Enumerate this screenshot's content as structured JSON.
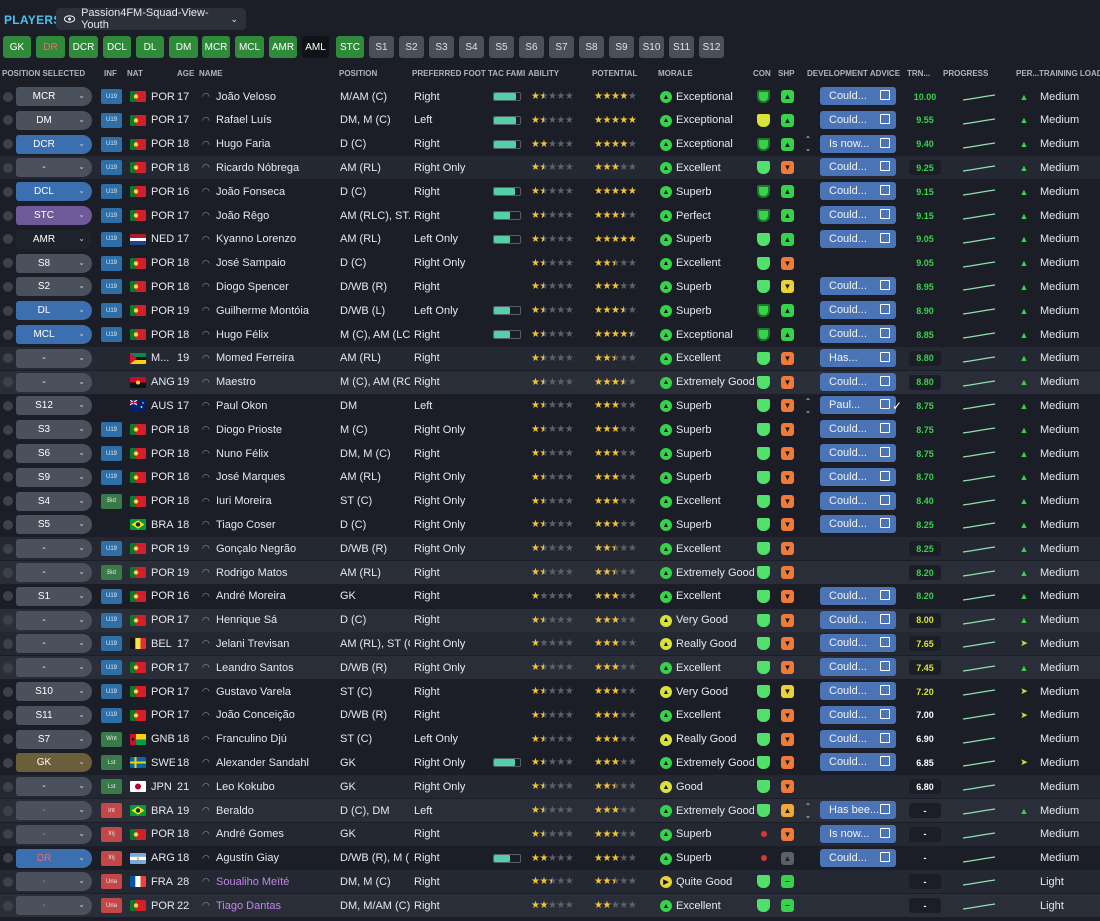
{
  "header": {
    "title": "PLAYERS",
    "view": "Passion4FM-Squad-View-Youth"
  },
  "position_buttons": [
    "GK",
    "DR",
    "DCR",
    "DCL",
    "DL",
    "DM",
    "MCR",
    "MCL",
    "AMR",
    "AML",
    "STC",
    "S1",
    "S2",
    "S3",
    "S4",
    "S5",
    "S6",
    "S7",
    "S8",
    "S9",
    "S10",
    "S11",
    "S12"
  ],
  "columns": {
    "position_selected": "POSITION SELECTED",
    "inf": "INF",
    "nat": "NAT",
    "age": "AGE",
    "name": "NAME",
    "position": "POSITION",
    "preferred_foot": "PREFERRED FOOT",
    "tac_fami": "TAC FAMI",
    "ability": "ABILITY",
    "potential": "POTENTIAL",
    "morale": "MORALE",
    "con": "CON",
    "shp": "SHP",
    "development_advice": "DEVELOPMENT ADVICE",
    "trn": "TRN...",
    "progress": "PROGRESS",
    "per": "PER...",
    "training_load": "TRAINING LOAD"
  },
  "colors": {
    "accent": "#49c2ee",
    "position_green": "#2f8a3a",
    "advice_blue": "#4a74b5",
    "star": "#f0c33a",
    "trn_green": "#37d24a",
    "trn_yellow": "#d8e23a",
    "trn_white": "#ffffff"
  },
  "players": [
    {
      "pos": "MCR",
      "inf": "U19",
      "flag": "POR",
      "nat": "POR",
      "age": "17",
      "name": "João Veloso",
      "position": "M/AM (C)",
      "foot": "Right",
      "fam": 0.85,
      "ability": 1.5,
      "potential": 4,
      "morale": "Exceptional",
      "morale_icon": "up",
      "con": "green-dark",
      "shp": "up-green",
      "arrows": false,
      "advice": "Could...",
      "tick": false,
      "trn": "10.00",
      "trn_color": "green",
      "per": "up",
      "load": "Medium"
    },
    {
      "pos": "DM",
      "inf": "U19",
      "flag": "POR",
      "nat": "POR",
      "age": "17",
      "name": "Rafael Luís",
      "position": "DM, M (C)",
      "foot": "Left",
      "fam": 0.85,
      "ability": 1.5,
      "potential": 5,
      "morale": "Exceptional",
      "morale_icon": "up",
      "con": "yellow",
      "shp": "up-green",
      "arrows": false,
      "advice": "Could...",
      "tick": false,
      "trn": "9.55",
      "trn_color": "green",
      "per": "up",
      "load": "Medium"
    },
    {
      "pos": "DCR",
      "inf": "U19",
      "flag": "POR",
      "nat": "POR",
      "age": "18",
      "name": "Hugo Faria",
      "position": "D (C)",
      "foot": "Right",
      "fam": 0.85,
      "ability": 2,
      "potential": 4,
      "morale": "Exceptional",
      "morale_icon": "up",
      "con": "green-dark",
      "shp": "up-green",
      "arrows": true,
      "advice": "Is now...",
      "tick": false,
      "trn": "9.40",
      "trn_color": "green",
      "per": "up",
      "load": "Medium"
    },
    {
      "pos": "-",
      "inf": "U19",
      "flag": "POR",
      "nat": "POR",
      "age": "18",
      "name": "Ricardo Nóbrega",
      "position": "AM (RL)",
      "foot": "Right Only",
      "fam": 0,
      "ability": 1.5,
      "potential": 3,
      "morale": "Excellent",
      "morale_icon": "up",
      "con": "green",
      "shp": "down-orange",
      "arrows": false,
      "advice": "Could...",
      "tick": false,
      "trn": "9.25",
      "trn_color": "green",
      "per": "up",
      "load": "Medium"
    },
    {
      "pos": "DCL",
      "inf": "U19",
      "flag": "POR",
      "nat": "POR",
      "age": "16",
      "name": "João Fonseca",
      "position": "D (C)",
      "foot": "Right",
      "fam": 0.8,
      "ability": 1.5,
      "potential": 5,
      "morale": "Superb",
      "morale_icon": "up",
      "con": "green-dark",
      "shp": "up-green",
      "arrows": false,
      "advice": "Could...",
      "tick": false,
      "trn": "9.15",
      "trn_color": "green",
      "per": "up",
      "load": "Medium"
    },
    {
      "pos": "STC",
      "inf": "U19",
      "flag": "POR",
      "nat": "POR",
      "age": "17",
      "name": "João Rêgo",
      "position": "AM (RLC), ST...",
      "foot": "Right",
      "fam": 0.6,
      "ability": 1.5,
      "potential": 3.5,
      "morale": "Perfect",
      "morale_icon": "up",
      "con": "green-dark",
      "shp": "up-green",
      "arrows": false,
      "advice": "Could...",
      "tick": false,
      "trn": "9.15",
      "trn_color": "green",
      "per": "up",
      "load": "Medium"
    },
    {
      "pos": "AMR",
      "inf": "U19",
      "flag": "NED",
      "nat": "NED",
      "age": "17",
      "name": "Kyanno Lorenzo",
      "position": "AM (RL)",
      "foot": "Left Only",
      "fam": 0.6,
      "ability": 1.5,
      "potential": 5,
      "morale": "Superb",
      "morale_icon": "up",
      "con": "green",
      "shp": "up-green",
      "arrows": false,
      "advice": "Could...",
      "tick": false,
      "trn": "9.05",
      "trn_color": "green",
      "per": "up",
      "load": "Medium"
    },
    {
      "pos": "S8",
      "inf": "U19",
      "flag": "POR",
      "nat": "POR",
      "age": "18",
      "name": "José Sampaio",
      "position": "D (C)",
      "foot": "Right Only",
      "fam": 0,
      "ability": 1.5,
      "potential": 2.5,
      "morale": "Excellent",
      "morale_icon": "up",
      "con": "green",
      "shp": "down-orange",
      "arrows": false,
      "advice": "",
      "tick": false,
      "trn": "9.05",
      "trn_color": "green",
      "per": "up",
      "load": "Medium"
    },
    {
      "pos": "S2",
      "inf": "U19",
      "flag": "POR",
      "nat": "POR",
      "age": "18",
      "name": "Diogo Spencer",
      "position": "D/WB (R)",
      "foot": "Right",
      "fam": 0,
      "ability": 1.5,
      "potential": 3,
      "morale": "Superb",
      "morale_icon": "up",
      "con": "green",
      "shp": "down-yellow",
      "arrows": false,
      "advice": "Could...",
      "tick": false,
      "trn": "8.95",
      "trn_color": "green",
      "per": "up",
      "load": "Medium"
    },
    {
      "pos": "DL",
      "inf": "U19",
      "flag": "POR",
      "nat": "POR",
      "age": "19",
      "name": "Guilherme Montóia",
      "position": "D/WB (L)",
      "foot": "Left Only",
      "fam": 0.6,
      "ability": 1.5,
      "potential": 3.5,
      "morale": "Superb",
      "morale_icon": "up",
      "con": "green-dark",
      "shp": "up-green",
      "arrows": false,
      "advice": "Could...",
      "tick": false,
      "trn": "8.90",
      "trn_color": "green",
      "per": "up",
      "load": "Medium"
    },
    {
      "pos": "MCL",
      "inf": "U19",
      "flag": "POR",
      "nat": "POR",
      "age": "18",
      "name": "Hugo Félix",
      "position": "M (C), AM (LC)",
      "foot": "Right",
      "fam": 0.6,
      "ability": 1.5,
      "potential": 4.5,
      "morale": "Exceptional",
      "morale_icon": "up",
      "con": "green-dark",
      "shp": "up-green",
      "arrows": false,
      "advice": "Could...",
      "tick": false,
      "trn": "8.85",
      "trn_color": "green",
      "per": "up",
      "load": "Medium"
    },
    {
      "pos": "-",
      "inf": "",
      "flag": "MOZ",
      "nat": "M...",
      "age": "19",
      "name": "Momed Ferreira",
      "position": "AM (RL)",
      "foot": "Right",
      "fam": 0,
      "ability": 1.5,
      "potential": 2.5,
      "morale": "Excellent",
      "morale_icon": "up",
      "con": "green",
      "shp": "down-orange",
      "arrows": false,
      "advice": "Has...",
      "tick": false,
      "trn": "8.80",
      "trn_color": "green",
      "per": "up",
      "load": "Medium"
    },
    {
      "pos": "-",
      "inf": "",
      "flag": "ANG",
      "nat": "ANG",
      "age": "19",
      "name": "Maestro",
      "position": "M (C), AM (RC)",
      "foot": "Right",
      "fam": 0,
      "ability": 1.5,
      "potential": 3.5,
      "morale": "Extremely Good",
      "morale_icon": "up",
      "con": "green",
      "shp": "down-orange",
      "arrows": false,
      "advice": "Could...",
      "tick": false,
      "trn": "8.80",
      "trn_color": "green",
      "per": "up",
      "load": "Medium"
    },
    {
      "pos": "S12",
      "inf": "",
      "flag": "AUS",
      "nat": "AUS",
      "age": "17",
      "name": "Paul Okon",
      "position": "DM",
      "foot": "Left",
      "fam": 0,
      "ability": 1.5,
      "potential": 3,
      "morale": "Superb",
      "morale_icon": "up",
      "con": "green",
      "shp": "down-orange",
      "arrows": true,
      "advice": "Paul...",
      "tick": true,
      "trn": "8.75",
      "trn_color": "green",
      "per": "up",
      "load": "Medium"
    },
    {
      "pos": "S3",
      "inf": "U19",
      "flag": "POR",
      "nat": "POR",
      "age": "18",
      "name": "Diogo Prioste",
      "position": "M (C)",
      "foot": "Right Only",
      "fam": 0,
      "ability": 1.5,
      "potential": 3,
      "morale": "Superb",
      "morale_icon": "up",
      "con": "green",
      "shp": "down-orange",
      "arrows": false,
      "advice": "Could...",
      "tick": false,
      "trn": "8.75",
      "trn_color": "green",
      "per": "up",
      "load": "Medium"
    },
    {
      "pos": "S6",
      "inf": "U19",
      "flag": "POR",
      "nat": "POR",
      "age": "18",
      "name": "Nuno Félix",
      "position": "DM, M (C)",
      "foot": "Right",
      "fam": 0,
      "ability": 1.5,
      "potential": 3,
      "morale": "Superb",
      "morale_icon": "up",
      "con": "green",
      "shp": "down-orange",
      "arrows": false,
      "advice": "Could...",
      "tick": false,
      "trn": "8.75",
      "trn_color": "green",
      "per": "up",
      "load": "Medium"
    },
    {
      "pos": "S9",
      "inf": "U19",
      "flag": "POR",
      "nat": "POR",
      "age": "18",
      "name": "José Marques",
      "position": "AM (RL)",
      "foot": "Right Only",
      "fam": 0,
      "ability": 1.5,
      "potential": 3,
      "morale": "Superb",
      "morale_icon": "up",
      "con": "green",
      "shp": "down-orange",
      "arrows": false,
      "advice": "Could...",
      "tick": false,
      "trn": "8.70",
      "trn_color": "green",
      "per": "up",
      "load": "Medium"
    },
    {
      "pos": "S4",
      "inf": "Bid",
      "flag": "POR",
      "nat": "POR",
      "age": "18",
      "name": "Iuri Moreira",
      "position": "ST (C)",
      "foot": "Right Only",
      "fam": 0,
      "ability": 1.5,
      "potential": 3,
      "morale": "Excellent",
      "morale_icon": "up",
      "con": "green",
      "shp": "down-orange",
      "arrows": false,
      "advice": "Could...",
      "tick": false,
      "trn": "8.40",
      "trn_color": "green",
      "per": "up",
      "load": "Medium"
    },
    {
      "pos": "S5",
      "inf": "",
      "flag": "BRA",
      "nat": "BRA",
      "age": "18",
      "name": "Tiago Coser",
      "position": "D (C)",
      "foot": "Right Only",
      "fam": 0,
      "ability": 1.5,
      "potential": 3,
      "morale": "Superb",
      "morale_icon": "up",
      "con": "green",
      "shp": "down-orange",
      "arrows": false,
      "advice": "Could...",
      "tick": false,
      "trn": "8.25",
      "trn_color": "green",
      "per": "up",
      "load": "Medium"
    },
    {
      "pos": "-",
      "inf": "U19",
      "flag": "POR",
      "nat": "POR",
      "age": "19",
      "name": "Gonçalo Negrão",
      "position": "D/WB (R)",
      "foot": "Right Only",
      "fam": 0,
      "ability": 1.5,
      "potential": 2.5,
      "morale": "Excellent",
      "morale_icon": "up",
      "con": "green",
      "shp": "down-orange",
      "arrows": false,
      "advice": "",
      "tick": false,
      "trn": "8.25",
      "trn_color": "green",
      "per": "up",
      "load": "Medium"
    },
    {
      "pos": "-",
      "inf": "Bid",
      "flag": "POR",
      "nat": "POR",
      "age": "19",
      "name": "Rodrigo Matos",
      "position": "AM (RL)",
      "foot": "Right",
      "fam": 0,
      "ability": 1.5,
      "potential": 2.5,
      "morale": "Extremely Good",
      "morale_icon": "up",
      "con": "green",
      "shp": "down-orange",
      "arrows": false,
      "advice": "",
      "tick": false,
      "trn": "8.20",
      "trn_color": "green",
      "per": "up",
      "load": "Medium"
    },
    {
      "pos": "S1",
      "inf": "U19",
      "flag": "POR",
      "nat": "POR",
      "age": "16",
      "name": "André Moreira",
      "position": "GK",
      "foot": "Right",
      "fam": 0,
      "ability": 1,
      "potential": 3,
      "morale": "Excellent",
      "morale_icon": "up",
      "con": "green",
      "shp": "down-orange",
      "arrows": false,
      "advice": "Could...",
      "tick": false,
      "trn": "8.20",
      "trn_color": "green",
      "per": "up",
      "load": "Medium"
    },
    {
      "pos": "-",
      "inf": "U19",
      "flag": "POR",
      "nat": "POR",
      "age": "17",
      "name": "Henrique Sá",
      "position": "D (C)",
      "foot": "Right",
      "fam": 0,
      "ability": 1.5,
      "potential": 3,
      "morale": "Very Good",
      "morale_icon": "up-yellow",
      "con": "green",
      "shp": "down-orange",
      "arrows": false,
      "advice": "Could...",
      "tick": false,
      "trn": "8.00",
      "trn_color": "yellow",
      "per": "up",
      "load": "Medium"
    },
    {
      "pos": "-",
      "inf": "U19",
      "flag": "BEL",
      "nat": "BEL",
      "age": "17",
      "name": "Jelani Trevisan",
      "position": "AM (RL), ST (C)",
      "foot": "Right Only",
      "fam": 0,
      "ability": 1,
      "potential": 3,
      "morale": "Really Good",
      "morale_icon": "up-yellow",
      "con": "green",
      "shp": "down-orange",
      "arrows": false,
      "advice": "Could...",
      "tick": false,
      "trn": "7.65",
      "trn_color": "yellow",
      "per": "flat-yellow",
      "load": "Medium"
    },
    {
      "pos": "-",
      "inf": "U19",
      "flag": "POR",
      "nat": "POR",
      "age": "17",
      "name": "Leandro Santos",
      "position": "D/WB (R)",
      "foot": "Right Only",
      "fam": 0,
      "ability": 1.5,
      "potential": 3,
      "morale": "Excellent",
      "morale_icon": "up",
      "con": "green",
      "shp": "down-orange",
      "arrows": false,
      "advice": "Could...",
      "tick": false,
      "trn": "7.45",
      "trn_color": "yellow",
      "per": "up",
      "load": "Medium"
    },
    {
      "pos": "S10",
      "inf": "U19",
      "flag": "POR",
      "nat": "POR",
      "age": "17",
      "name": "Gustavo Varela",
      "position": "ST (C)",
      "foot": "Right",
      "fam": 0,
      "ability": 1.5,
      "potential": 3,
      "morale": "Very Good",
      "morale_icon": "up-yellow",
      "con": "green",
      "shp": "down-yellow",
      "arrows": false,
      "advice": "Could...",
      "tick": false,
      "trn": "7.20",
      "trn_color": "yellow",
      "per": "flat-yellow",
      "load": "Medium"
    },
    {
      "pos": "S11",
      "inf": "U19",
      "flag": "POR",
      "nat": "POR",
      "age": "17",
      "name": "João Conceição",
      "position": "D/WB (R)",
      "foot": "Right",
      "fam": 0,
      "ability": 1.5,
      "potential": 3,
      "morale": "Excellent",
      "morale_icon": "up",
      "con": "green",
      "shp": "down-orange",
      "arrows": false,
      "advice": "Could...",
      "tick": false,
      "trn": "7.00",
      "trn_color": "white",
      "per": "flat-yellow",
      "load": "Medium"
    },
    {
      "pos": "S7",
      "inf": "Wnt",
      "flag": "GNB",
      "nat": "GNB",
      "age": "18",
      "name": "Franculino Djú",
      "position": "ST (C)",
      "foot": "Left Only",
      "fam": 0,
      "ability": 1.5,
      "potential": 3,
      "morale": "Really Good",
      "morale_icon": "up-yellow",
      "con": "green",
      "shp": "down-orange",
      "arrows": false,
      "advice": "Could...",
      "tick": false,
      "trn": "6.90",
      "trn_color": "white",
      "per": "",
      "load": "Medium"
    },
    {
      "pos": "GK",
      "inf": "Lst",
      "flag": "SWE",
      "nat": "SWE",
      "age": "18",
      "name": "Alexander Sandahl",
      "position": "GK",
      "foot": "Right Only",
      "fam": 0.8,
      "ability": 1.5,
      "potential": 3,
      "morale": "Extremely Good",
      "morale_icon": "up",
      "con": "green",
      "shp": "down-orange",
      "arrows": false,
      "advice": "Could...",
      "tick": false,
      "trn": "6.85",
      "trn_color": "white",
      "per": "flat-yellow",
      "load": "Medium"
    },
    {
      "pos": "-",
      "inf": "Lst",
      "flag": "JPN",
      "nat": "JPN",
      "age": "21",
      "name": "Leo Kokubo",
      "position": "GK",
      "foot": "Right Only",
      "fam": 0,
      "ability": 1.5,
      "potential": 2.5,
      "morale": "Good",
      "morale_icon": "up-yellow",
      "con": "green",
      "shp": "down-orange",
      "arrows": false,
      "advice": "",
      "tick": false,
      "trn": "6.80",
      "trn_color": "white",
      "per": "",
      "load": "Medium"
    },
    {
      "pos": "-",
      "inf": "Int",
      "flag": "BRA",
      "nat": "BRA",
      "age": "19",
      "name": "Beraldo",
      "position": "D (C), DM",
      "foot": "Left",
      "fam": 0,
      "ability": 1.5,
      "potential": 3,
      "morale": "Extremely Good",
      "morale_icon": "up",
      "con": "green",
      "shp": "up-orange",
      "arrows": true,
      "advice": "Has bee...",
      "tick": false,
      "trn": "-",
      "trn_color": "white",
      "per": "up",
      "load": "Medium"
    },
    {
      "pos": "-",
      "inf": "Inj",
      "flag": "POR",
      "nat": "POR",
      "age": "18",
      "name": "André Gomes",
      "position": "GK",
      "foot": "Right",
      "fam": 0,
      "ability": 1.5,
      "potential": 3,
      "morale": "Superb",
      "morale_icon": "up",
      "con": "injured",
      "shp": "down-orange",
      "arrows": false,
      "advice": "Is now...",
      "tick": false,
      "trn": "-",
      "trn_color": "white",
      "per": "",
      "load": "Medium"
    },
    {
      "pos": "DR",
      "inf": "Inj",
      "flag": "ARG",
      "nat": "ARG",
      "age": "18",
      "name": "Agustín Giay",
      "position": "D/WB (R), M (...",
      "foot": "Right",
      "fam": 0.6,
      "ability": 2,
      "potential": 3,
      "morale": "Superb",
      "morale_icon": "up",
      "con": "injured",
      "shp": "up-grey",
      "arrows": false,
      "advice": "Could...",
      "tick": false,
      "trn": "-",
      "trn_color": "white",
      "per": "",
      "load": "Medium"
    },
    {
      "pos": "-",
      "inf": "Una",
      "flag": "FRA",
      "nat": "FRA",
      "age": "28",
      "name": "Soualiho Meïté",
      "position": "DM, M (C)",
      "foot": "Right",
      "fam": 0,
      "ability": 2.5,
      "potential": 2.5,
      "morale": "Quite Good",
      "morale_icon": "right-yellow",
      "con": "green",
      "shp": "flat-green",
      "arrows": false,
      "advice": "",
      "tick": false,
      "trn": "-",
      "trn_color": "white",
      "per": "",
      "load": "Light"
    },
    {
      "pos": "-",
      "inf": "Una",
      "flag": "POR",
      "nat": "POR",
      "age": "22",
      "name": "Tiago Dantas",
      "position": "DM, M/AM (C)",
      "foot": "Right",
      "fam": 0,
      "ability": 2,
      "potential": 2,
      "morale": "Excellent",
      "morale_icon": "up",
      "con": "green",
      "shp": "flat-green",
      "arrows": false,
      "advice": "",
      "tick": false,
      "trn": "-",
      "trn_color": "white",
      "per": "",
      "load": "Light"
    }
  ]
}
